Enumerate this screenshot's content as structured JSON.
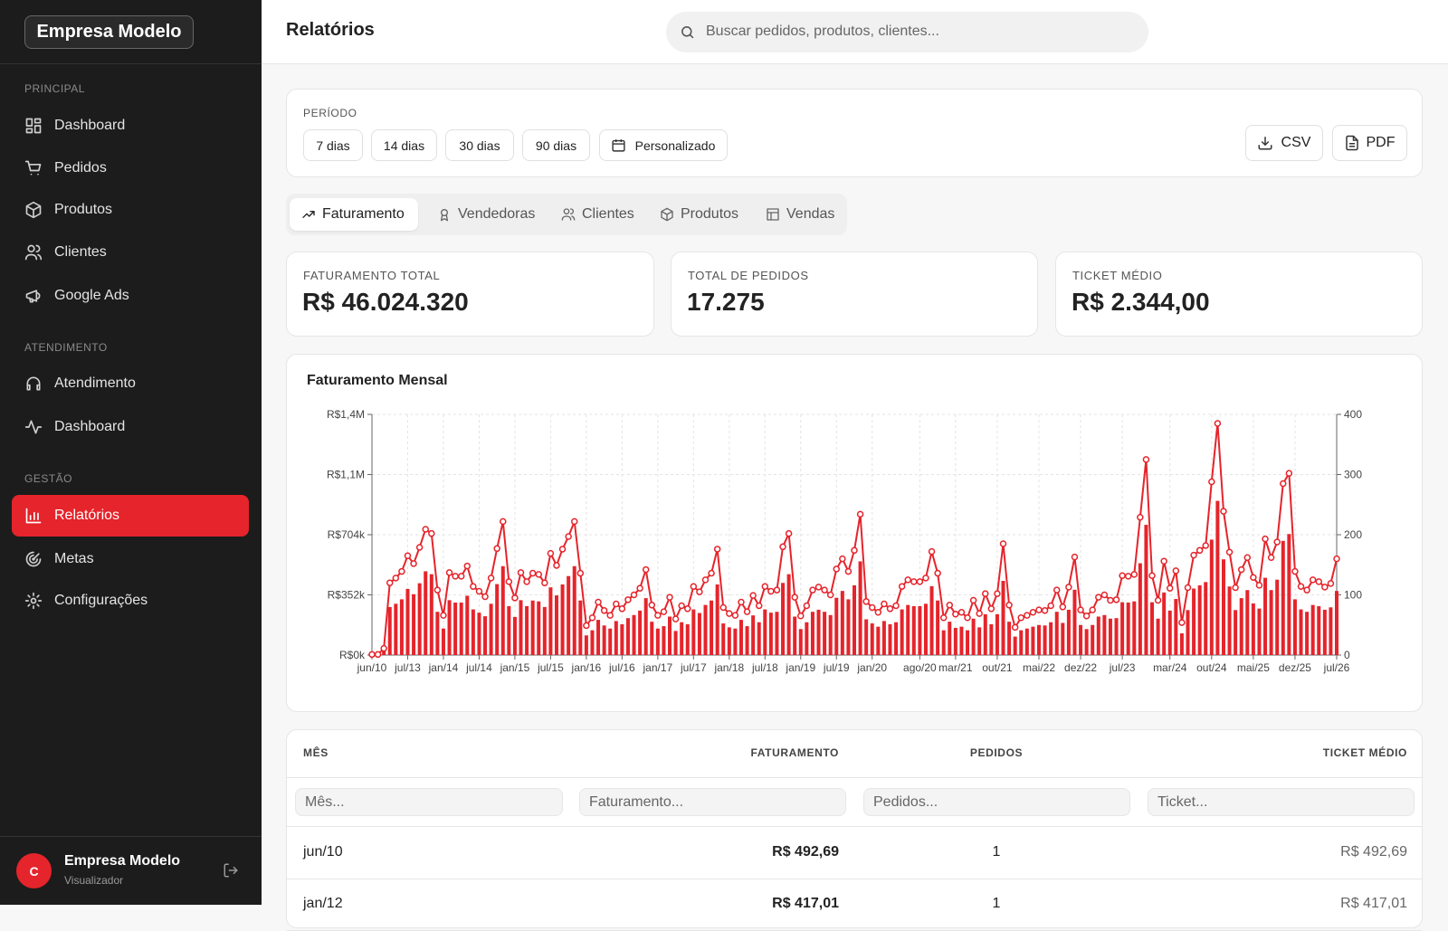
{
  "sidebar": {
    "brand": "Empresa Modelo",
    "sections": [
      {
        "title": "PRINCIPAL",
        "items": [
          {
            "label": "Dashboard"
          },
          {
            "label": "Pedidos"
          },
          {
            "label": "Produtos"
          },
          {
            "label": "Clientes"
          },
          {
            "label": "Google Ads"
          }
        ]
      },
      {
        "title": "ATENDIMENTO",
        "items": [
          {
            "label": "Atendimento"
          },
          {
            "label": "Dashboard"
          }
        ]
      },
      {
        "title": "GESTÃO",
        "items": [
          {
            "label": "Relatórios",
            "active": true
          },
          {
            "label": "Metas"
          },
          {
            "label": "Configurações"
          }
        ]
      }
    ],
    "user": {
      "avatar": "C",
      "name": "Empresa Modelo",
      "role": "Visualizador"
    }
  },
  "header": {
    "title": "Relatórios",
    "search_placeholder": "Buscar pedidos, produtos, clientes..."
  },
  "filters": {
    "label": "PERÍODO",
    "options": [
      "7 dias",
      "14 dias",
      "30 dias",
      "90 dias",
      "Personalizado"
    ],
    "exports": [
      "CSV",
      "PDF"
    ]
  },
  "tabs": [
    {
      "label": "Faturamento",
      "active": true
    },
    {
      "label": "Vendedoras"
    },
    {
      "label": "Clientes"
    },
    {
      "label": "Produtos"
    },
    {
      "label": "Vendas"
    }
  ],
  "kpis": [
    {
      "label": "FATURAMENTO TOTAL",
      "value": "R$ 46.024.320"
    },
    {
      "label": "TOTAL DE PEDIDOS",
      "value": "17.275"
    },
    {
      "label": "TICKET MÉDIO",
      "value": "R$ 2.344,00"
    }
  ],
  "chart_data": {
    "type": "combo",
    "title": "Faturamento Mensal",
    "grid": true,
    "categories": [
      "jun/10",
      null,
      null,
      null,
      null,
      null,
      "jul/13",
      null,
      null,
      null,
      null,
      null,
      "jan/14",
      null,
      null,
      null,
      null,
      null,
      "jul/14",
      null,
      null,
      null,
      null,
      null,
      "jan/15",
      null,
      null,
      null,
      null,
      null,
      "jul/15",
      null,
      null,
      null,
      null,
      null,
      "jan/16",
      null,
      null,
      null,
      null,
      null,
      "jul/16",
      null,
      null,
      null,
      null,
      null,
      "jan/17",
      null,
      null,
      null,
      null,
      null,
      "jul/17",
      null,
      null,
      null,
      null,
      null,
      "jan/18",
      null,
      null,
      null,
      null,
      null,
      "jul/18",
      null,
      null,
      null,
      null,
      null,
      "jan/19",
      null,
      null,
      null,
      null,
      null,
      "jul/19",
      null,
      null,
      null,
      null,
      null,
      "jan/20",
      null,
      null,
      null,
      null,
      null,
      null,
      null,
      "ago/20",
      null,
      null,
      null,
      null,
      null,
      "mar/21",
      null,
      null,
      null,
      null,
      null,
      null,
      "out/21",
      null,
      null,
      null,
      null,
      null,
      null,
      "mai/22",
      null,
      null,
      null,
      null,
      null,
      null,
      "dez/22",
      null,
      null,
      null,
      null,
      null,
      null,
      "jul/23",
      null,
      null,
      null,
      null,
      null,
      null,
      null,
      "mar/24",
      null,
      null,
      null,
      null,
      null,
      null,
      "out/24",
      null,
      null,
      null,
      null,
      null,
      null,
      "mai/25",
      null,
      null,
      null,
      null,
      null,
      null,
      "dez/25",
      null,
      null,
      null,
      null,
      null,
      null,
      "jul/26"
    ],
    "ylim": [
      0,
      1408000
    ],
    "yticks": [
      {
        "value": 0,
        "label": "R$0k"
      },
      {
        "value": 352000,
        "label": "R$352k"
      },
      {
        "value": 704000,
        "label": "R$704k"
      },
      {
        "value": 1056000,
        "label": "R$1,1M"
      },
      {
        "value": 1408000,
        "label": "R$1,4M"
      }
    ],
    "y2lim": [
      0,
      400
    ],
    "y2ticks": [
      0,
      100,
      200,
      300,
      400
    ],
    "series": [
      {
        "type": "bar",
        "color": "#e5242b",
        "values": [
          493,
          417,
          26000,
          281000,
          300000,
          326000,
          387000,
          356000,
          420000,
          490000,
          473000,
          253000,
          155000,
          321000,
          307000,
          307000,
          347000,
          267000,
          248000,
          227000,
          300000,
          415000,
          520000,
          286000,
          223000,
          321000,
          286000,
          319000,
          314000,
          281000,
          396000,
          349000,
          413000,
          462000,
          520000,
          319000,
          115000,
          145000,
          206000,
          173000,
          155000,
          199000,
          180000,
          216000,
          234000,
          260000,
          333000,
          195000,
          155000,
          169000,
          225000,
          141000,
          192000,
          180000,
          267000,
          246000,
          293000,
          319000,
          413000,
          185000,
          162000,
          155000,
          206000,
          169000,
          232000,
          192000,
          267000,
          248000,
          253000,
          422000,
          473000,
          225000,
          152000,
          192000,
          253000,
          265000,
          253000,
          234000,
          335000,
          375000,
          326000,
          408000,
          548000,
          209000,
          185000,
          166000,
          199000,
          180000,
          192000,
          267000,
          293000,
          286000,
          286000,
          300000,
          403000,
          319000,
          145000,
          195000,
          159000,
          166000,
          145000,
          213000,
          162000,
          239000,
          180000,
          239000,
          434000,
          195000,
          108000,
          145000,
          155000,
          166000,
          176000,
          173000,
          192000,
          253000,
          188000,
          265000,
          382000,
          176000,
          152000,
          176000,
          225000,
          234000,
          213000,
          216000,
          309000,
          307000,
          314000,
          537000,
          762000,
          309000,
          213000,
          366000,
          260000,
          328000,
          127000,
          263000,
          389000,
          408000,
          427000,
          675000,
          902000,
          560000,
          401000,
          263000,
          333000,
          380000,
          302000,
          272000,
          452000,
          380000,
          441000,
          668000,
          708000,
          326000,
          267000,
          253000,
          293000,
          286000,
          265000,
          279000,
          375000
        ]
      },
      {
        "type": "line",
        "axis": "y2",
        "color": "#e5242b",
        "values": [
          1,
          1,
          11,
          120,
          128,
          139,
          165,
          152,
          179,
          209,
          202,
          108,
          66,
          137,
          131,
          131,
          148,
          114,
          106,
          97,
          128,
          177,
          222,
          122,
          95,
          137,
          122,
          136,
          134,
          120,
          169,
          149,
          176,
          197,
          222,
          136,
          49,
          62,
          88,
          74,
          66,
          85,
          77,
          92,
          100,
          111,
          142,
          83,
          66,
          72,
          96,
          60,
          82,
          77,
          114,
          105,
          125,
          136,
          176,
          79,
          69,
          66,
          88,
          72,
          99,
          82,
          114,
          106,
          108,
          180,
          202,
          96,
          65,
          82,
          108,
          113,
          108,
          100,
          143,
          160,
          139,
          174,
          234,
          89,
          79,
          71,
          85,
          77,
          82,
          114,
          125,
          122,
          122,
          128,
          172,
          136,
          62,
          83,
          68,
          71,
          62,
          91,
          69,
          102,
          77,
          102,
          185,
          83,
          46,
          62,
          66,
          71,
          75,
          74,
          82,
          108,
          80,
          113,
          163,
          75,
          65,
          75,
          96,
          100,
          91,
          92,
          132,
          131,
          134,
          229,
          325,
          132,
          91,
          156,
          111,
          140,
          54,
          112,
          166,
          174,
          182,
          288,
          385,
          239,
          171,
          112,
          142,
          162,
          129,
          116,
          193,
          162,
          188,
          285,
          302,
          139,
          114,
          108,
          125,
          122,
          113,
          119,
          160
        ]
      }
    ]
  },
  "table": {
    "headers": [
      "MÊS",
      "FATURAMENTO",
      "PEDIDOS",
      "TICKET MÉDIO"
    ],
    "filters": [
      "Mês...",
      "Faturamento...",
      "Pedidos...",
      "Ticket..."
    ],
    "rows": [
      [
        "jun/10",
        "R$ 492,69",
        "1",
        "R$ 492,69"
      ],
      [
        "jan/12",
        "R$ 417,01",
        "1",
        "R$ 417,01"
      ]
    ]
  }
}
